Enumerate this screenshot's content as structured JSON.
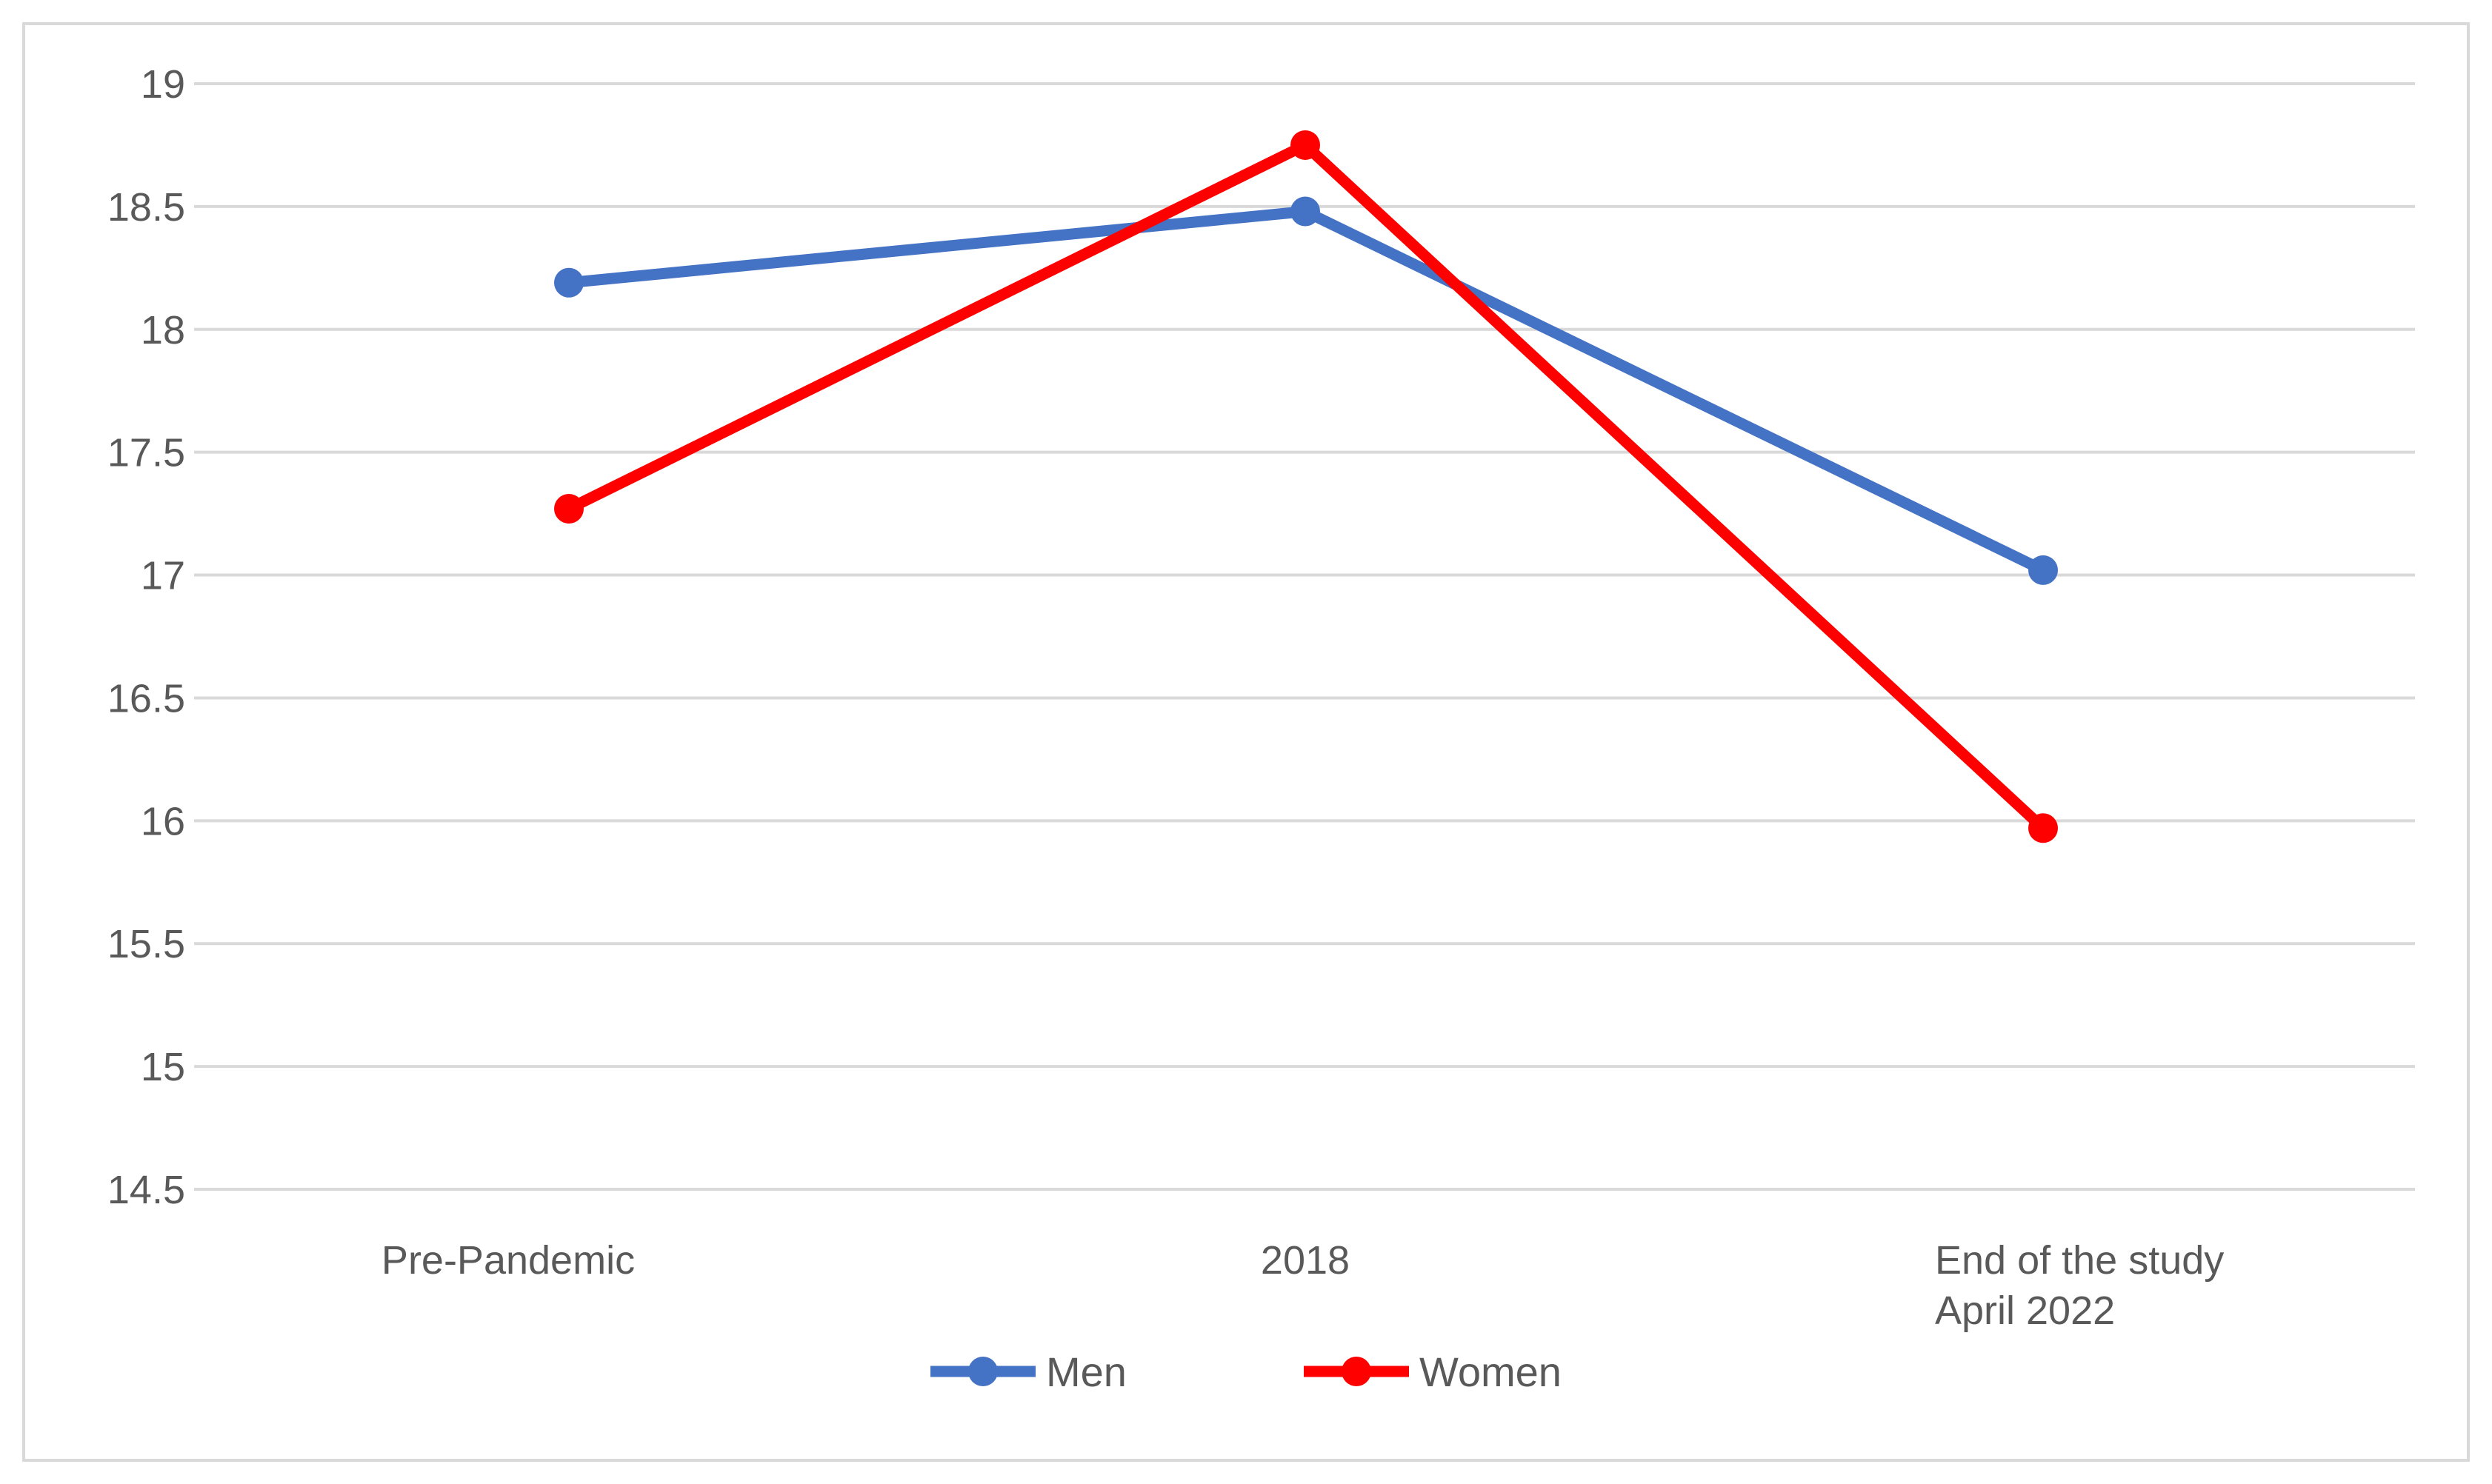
{
  "chart_data": {
    "type": "line",
    "categories": [
      [
        "Pre-Pandemic"
      ],
      [
        "2018"
      ],
      [
        "End of the study",
        "April 2022"
      ]
    ],
    "series": [
      {
        "name": "Men",
        "color": "#4472c4",
        "values": [
          18.19,
          18.48,
          17.02
        ]
      },
      {
        "name": "Women",
        "color": "#ff0000",
        "values": [
          17.27,
          18.75,
          15.97
        ]
      }
    ],
    "ylim": [
      14.5,
      19
    ],
    "yticks": [
      "14.5",
      "15",
      "15.5",
      "16",
      "16.5",
      "17",
      "17.5",
      "18",
      "18.5",
      "19"
    ],
    "grid": true,
    "legend": "bottom",
    "title": "",
    "xlabel": "",
    "ylabel": ""
  }
}
